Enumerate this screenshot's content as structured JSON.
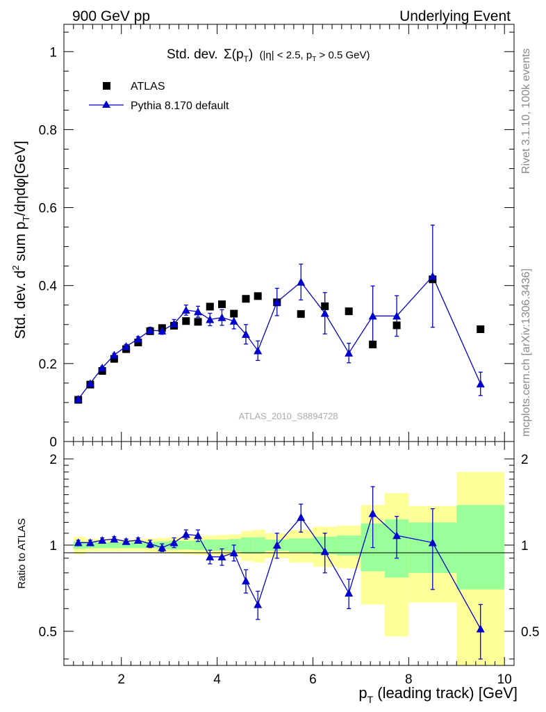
{
  "header": {
    "left_label": "900 GeV pp",
    "right_label": "Underlying Event"
  },
  "side_labels": {
    "generator": "Rivet 3.1.10,  100k events",
    "source": "mcplots.cern.ch [arXiv:1306.3436]"
  },
  "chart_data": {
    "type": "scatter",
    "title": "Std. dev. Σ(p_T) (|η| < 2.5, p_T > 0.5 GeV)",
    "title_main": "Std. dev.",
    "title_sigma": "Σ(p",
    "title_sigma_sub": "T",
    "title_sigma_close": ")",
    "title_cut_1": "(|η| < 2.5, p",
    "title_cut_sub": "T",
    "title_cut_2": " > 0.5 GeV)",
    "watermark": "ATLAS_2010_S8894728",
    "xlabel": "p_T (leading track) [GeV]",
    "xlabel_main": "p",
    "xlabel_sub": "T",
    "xlabel_rest": " (leading track) [GeV]",
    "ylabel": "Std. dev. d² sum p_T/dηdφ[GeV]",
    "ylabel_a": "Std. dev. d",
    "ylabel_sup": "2",
    "ylabel_b": " sum p",
    "ylabel_sub": "T",
    "ylabel_c": "/dηdφ[GeV]",
    "ratio_ylabel": "Ratio to ATLAS",
    "xlim": [
      0.8,
      10.2
    ],
    "ylim": [
      0,
      1.07
    ],
    "ratio_ylim": [
      0.38,
      2.3
    ],
    "x_ticks": [
      2,
      4,
      6,
      8,
      10
    ],
    "x_tick_labels": [
      "2",
      "4",
      "6",
      "8",
      "10"
    ],
    "y_ticks": [
      0,
      0.2,
      0.4,
      0.6,
      0.8,
      1
    ],
    "y_tick_labels": [
      "0",
      "0.2",
      "0.4",
      "0.6",
      "0.8",
      "1"
    ],
    "ratio_ticks": [
      0.5,
      1,
      2
    ],
    "ratio_tick_labels": [
      "0.5",
      "1",
      "2"
    ],
    "legend": [
      {
        "name": "ATLAS",
        "marker": "square",
        "color": "#000000"
      },
      {
        "name": "Pythia 8.170 default",
        "marker": "triangle",
        "color": "#0000cc"
      }
    ],
    "series": [
      {
        "name": "ATLAS",
        "x": [
          1.1,
          1.35,
          1.6,
          1.85,
          2.1,
          2.35,
          2.6,
          2.85,
          3.1,
          3.35,
          3.6,
          3.85,
          4.1,
          4.35,
          4.6,
          4.85,
          5.25,
          5.75,
          6.25,
          6.75,
          7.25,
          7.75,
          8.5,
          9.5
        ],
        "y": [
          0.107,
          0.146,
          0.181,
          0.212,
          0.237,
          0.254,
          0.283,
          0.291,
          0.297,
          0.309,
          0.307,
          0.346,
          0.352,
          0.328,
          0.366,
          0.373,
          0.357,
          0.327,
          0.347,
          0.334,
          0.249,
          0.298,
          0.416,
          0.288
        ]
      },
      {
        "name": "Pythia 8.170 default",
        "x": [
          1.1,
          1.35,
          1.6,
          1.85,
          2.1,
          2.35,
          2.6,
          2.85,
          3.1,
          3.35,
          3.6,
          3.85,
          4.1,
          4.35,
          4.6,
          4.85,
          5.25,
          5.75,
          6.25,
          6.75,
          7.25,
          7.75,
          8.5,
          9.5
        ],
        "y": [
          0.109,
          0.149,
          0.189,
          0.222,
          0.244,
          0.263,
          0.285,
          0.284,
          0.302,
          0.337,
          0.333,
          0.313,
          0.318,
          0.309,
          0.275,
          0.233,
          0.358,
          0.409,
          0.329,
          0.227,
          0.322,
          0.322,
          0.424,
          0.148
        ],
        "err": [
          0.004,
          0.004,
          0.004,
          0.004,
          0.005,
          0.006,
          0.008,
          0.009,
          0.011,
          0.013,
          0.014,
          0.016,
          0.02,
          0.02,
          0.025,
          0.025,
          0.035,
          0.046,
          0.053,
          0.025,
          0.077,
          0.052,
          0.131,
          0.03
        ],
        "ratio": [
          1.02,
          1.02,
          1.04,
          1.05,
          1.03,
          1.04,
          1.01,
          0.98,
          1.02,
          1.09,
          1.08,
          0.91,
          0.91,
          0.94,
          0.75,
          0.62,
          1.0,
          1.25,
          0.95,
          0.68,
          1.29,
          1.08,
          1.02,
          0.51
        ],
        "ratio_err": [
          0.02,
          0.02,
          0.02,
          0.02,
          0.02,
          0.02,
          0.03,
          0.03,
          0.04,
          0.04,
          0.05,
          0.05,
          0.06,
          0.06,
          0.07,
          0.07,
          0.1,
          0.14,
          0.15,
          0.08,
          0.31,
          0.18,
          0.32,
          0.11
        ]
      }
    ],
    "uncertainty_bands": {
      "x_edges": [
        1.0,
        1.25,
        1.5,
        1.75,
        2.0,
        2.25,
        2.5,
        2.75,
        3.0,
        3.25,
        3.5,
        3.75,
        4.0,
        4.25,
        4.5,
        4.75,
        5.0,
        5.5,
        6.0,
        6.5,
        7.0,
        7.5,
        8.0,
        9.0,
        10.0
      ],
      "stat_low": [
        0.97,
        0.975,
        0.975,
        0.975,
        0.975,
        0.975,
        0.975,
        0.97,
        0.965,
        0.965,
        0.96,
        0.955,
        0.955,
        0.95,
        0.935,
        0.935,
        0.955,
        0.945,
        0.93,
        0.92,
        0.81,
        0.77,
        0.8,
        0.7
      ],
      "stat_high": [
        1.03,
        1.025,
        1.025,
        1.025,
        1.025,
        1.025,
        1.025,
        1.03,
        1.035,
        1.035,
        1.04,
        1.045,
        1.045,
        1.05,
        1.065,
        1.065,
        1.045,
        1.055,
        1.07,
        1.08,
        1.19,
        1.23,
        1.2,
        1.38
      ],
      "total_low": [
        0.93,
        0.95,
        0.95,
        0.95,
        0.95,
        0.95,
        0.945,
        0.94,
        0.935,
        0.93,
        0.925,
        0.92,
        0.915,
        0.91,
        0.88,
        0.87,
        0.9,
        0.87,
        0.84,
        0.83,
        0.62,
        0.48,
        0.63,
        0.38
      ],
      "total_high": [
        1.07,
        1.05,
        1.05,
        1.05,
        1.05,
        1.05,
        1.055,
        1.06,
        1.065,
        1.07,
        1.075,
        1.08,
        1.085,
        1.09,
        1.12,
        1.13,
        1.1,
        1.13,
        1.16,
        1.17,
        1.38,
        1.52,
        1.37,
        1.8
      ]
    },
    "colors": {
      "data": "#000000",
      "mc": "#0000cc",
      "stat_band": "#99ff99",
      "total_band": "#ffff99",
      "watermark": "#aaaaaa"
    }
  }
}
